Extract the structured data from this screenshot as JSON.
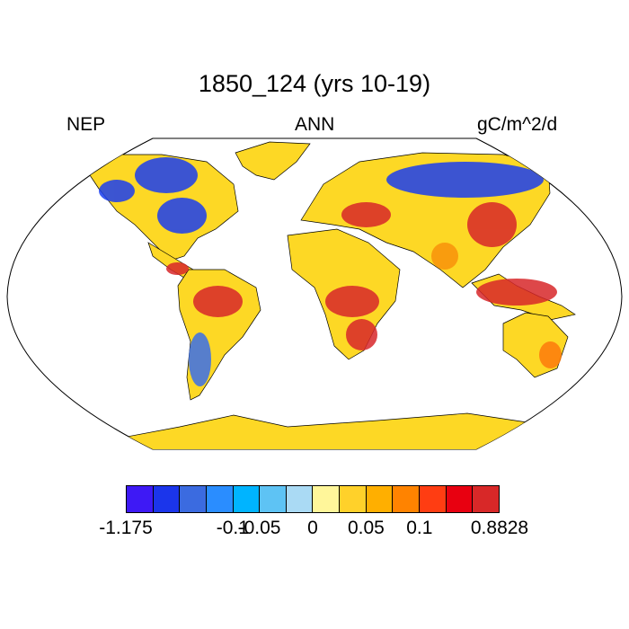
{
  "header": {
    "title": "1850_124 (yrs 10-19)",
    "left_label": "NEP",
    "center_label": "ANN",
    "right_label": "gC/m^2/d"
  },
  "map": {
    "projection": "robinson",
    "land_base_color": "#fdd825",
    "regions": [
      {
        "name": "north-america-boreal",
        "color": "#1a3ef0"
      },
      {
        "name": "eastern-us",
        "color": "#1a3ef0"
      },
      {
        "name": "central-america",
        "color": "#d8272a"
      },
      {
        "name": "amazon",
        "color": "#d8272a"
      },
      {
        "name": "southern-south-america",
        "color": "#3a6fea"
      },
      {
        "name": "europe",
        "color": "#d8272a"
      },
      {
        "name": "siberia",
        "color": "#1a3ef0"
      },
      {
        "name": "east-asia",
        "color": "#d8272a"
      },
      {
        "name": "central-africa",
        "color": "#d8272a"
      },
      {
        "name": "southern-africa",
        "color": "#d8272a"
      },
      {
        "name": "southeast-asia",
        "color": "#d8272a"
      },
      {
        "name": "india",
        "color": "#f9920b"
      },
      {
        "name": "east-australia",
        "color": "#fd7a0c"
      }
    ]
  },
  "colorbar": {
    "colors": [
      "#3e19f5",
      "#1b35eb",
      "#3b6be0",
      "#2a8dff",
      "#00b4ff",
      "#5ec3f4",
      "#aadaf4",
      "#fff69a",
      "#ffd12a",
      "#ffaf00",
      "#ff8300",
      "#ff3d12",
      "#e80010",
      "#d82828"
    ],
    "ticks": [
      {
        "label": "-1.175",
        "boundary": 0
      },
      {
        "label": "-0.1",
        "boundary": 4
      },
      {
        "label": "-0.05",
        "boundary": 5
      },
      {
        "label": "0",
        "boundary": 7
      },
      {
        "label": "0.05",
        "boundary": 9
      },
      {
        "label": "0.1",
        "boundary": 11
      },
      {
        "label": "0.8828",
        "boundary": 14
      }
    ]
  }
}
